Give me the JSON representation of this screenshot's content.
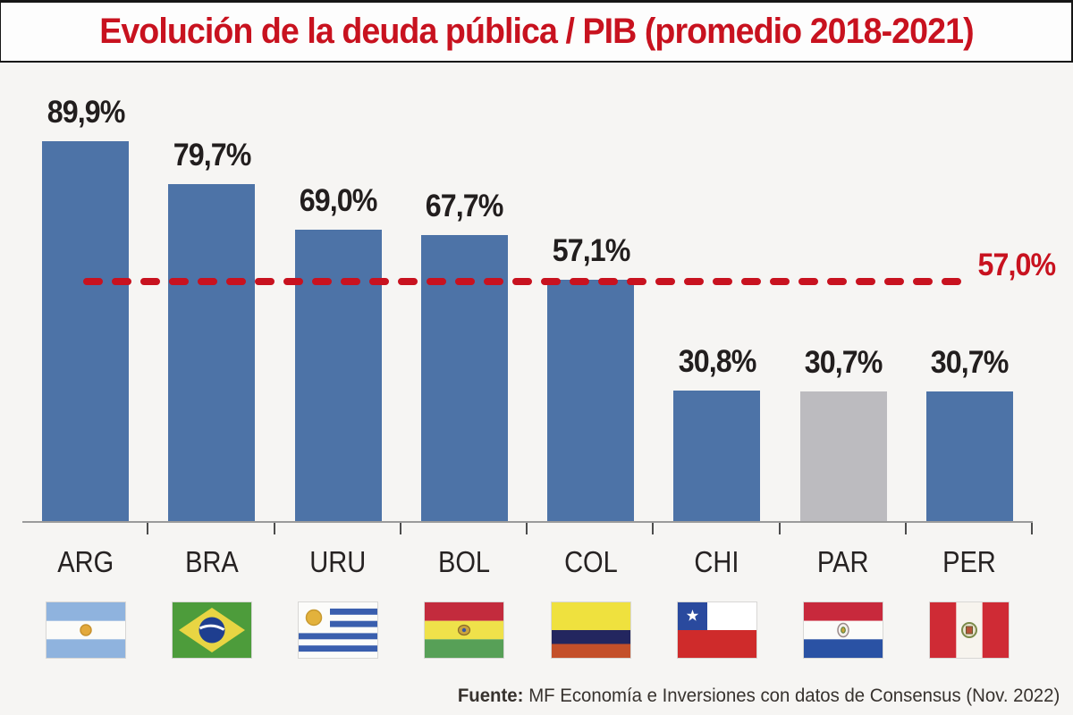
{
  "title": "Evolución de la deuda pública / PIB (promedio 2018-2021)",
  "footer": {
    "label": "Fuente:",
    "text": "MF Economía e Inversiones con datos de Consensus (Nov. 2022)"
  },
  "reference_line": {
    "label": "57,0%",
    "value": 57.0
  },
  "colors": {
    "bar_blue": "#4d73a7",
    "bar_gray": "#bcbbbf",
    "accent_red": "#c8121f",
    "background": "#f6f5f3"
  },
  "chart_data": {
    "type": "bar",
    "title": "Evolución de la deuda pública / PIB (promedio 2018-2021)",
    "categories": [
      "ARG",
      "BRA",
      "URU",
      "BOL",
      "COL",
      "CHI",
      "PAR",
      "PER"
    ],
    "values": [
      89.9,
      79.7,
      69.0,
      67.7,
      57.1,
      30.8,
      30.7,
      30.7
    ],
    "value_labels": [
      "89,9%",
      "79,7%",
      "69,0%",
      "67,7%",
      "57,1%",
      "30,8%",
      "30,7%",
      "30,7%"
    ],
    "bar_colors": [
      "bar_blue",
      "bar_blue",
      "bar_blue",
      "bar_blue",
      "bar_blue",
      "bar_blue",
      "bar_gray",
      "bar_blue"
    ],
    "flags": [
      "argentina",
      "brazil",
      "uruguay",
      "bolivia",
      "colombia",
      "chile",
      "paraguay",
      "peru"
    ],
    "reference_line": {
      "value": 57.0,
      "label": "57,0%"
    },
    "ylim": [
      0,
      95
    ],
    "xlabel": "",
    "ylabel": "",
    "legend": "none",
    "grid": "off",
    "source": "Fuente: MF Economía e Inversiones con datos de Consensus (Nov. 2022)"
  }
}
